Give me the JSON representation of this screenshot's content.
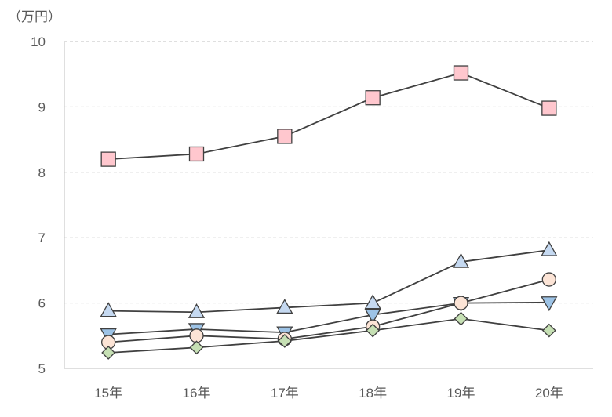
{
  "chart_data": {
    "type": "line",
    "unit_label": "（万円）",
    "categories": [
      "15年",
      "16年",
      "17年",
      "18年",
      "19年",
      "20年"
    ],
    "ylim": [
      5,
      10
    ],
    "yticks": [
      "5",
      "6",
      "7",
      "8",
      "9",
      "10"
    ],
    "grid": "horizontal dashed",
    "legend": "none",
    "line_color": "#404040",
    "series": [
      {
        "marker": "square",
        "fill": "#ffc7ce",
        "values": [
          8.2,
          8.28,
          8.55,
          9.14,
          9.52,
          8.98
        ]
      },
      {
        "marker": "triangle-up",
        "fill": "#c5d9f1",
        "values": [
          5.88,
          5.86,
          5.93,
          6.0,
          6.63,
          6.81
        ]
      },
      {
        "marker": "triangle-down",
        "fill": "#9dc3e6",
        "values": [
          5.52,
          5.6,
          5.55,
          5.82,
          6.0,
          6.01
        ]
      },
      {
        "marker": "circle",
        "fill": "#fce4d6",
        "values": [
          5.4,
          5.5,
          5.45,
          5.64,
          6.0,
          6.36
        ]
      },
      {
        "marker": "diamond",
        "fill": "#c6e0b4",
        "values": [
          5.24,
          5.32,
          5.42,
          5.58,
          5.76,
          5.58
        ]
      }
    ]
  }
}
